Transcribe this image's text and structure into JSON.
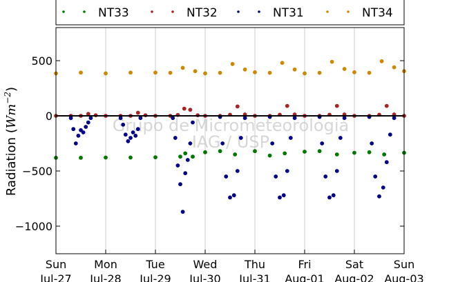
{
  "chart_data": {
    "type": "scatter",
    "ylabel": "Radiation ($Wm^{-2}$)",
    "ylabel_text": "Radiation (",
    "ylabel_unit_base": "Wm",
    "ylabel_unit_exp": "−2",
    "ylabel_close": ")",
    "ylim": [
      -1250,
      800
    ],
    "yticks": [
      {
        "value": 500,
        "label": "500"
      },
      {
        "value": 0,
        "label": "0"
      },
      {
        "value": -500,
        "label": "−500"
      },
      {
        "value": -1000,
        "label": "−1000"
      }
    ],
    "xlim": [
      0,
      7
    ],
    "xticks": [
      {
        "day": 0,
        "line1": "Sun",
        "line2": "Jul-27"
      },
      {
        "day": 1,
        "line1": "Mon",
        "line2": "Jul-28"
      },
      {
        "day": 2,
        "line1": "Tue",
        "line2": "Jul-29"
      },
      {
        "day": 3,
        "line1": "Wed",
        "line2": "Jul-30"
      },
      {
        "day": 4,
        "line1": "Thu",
        "line2": "Jul-31"
      },
      {
        "day": 5,
        "line1": "Fri",
        "line2": "Aug-01"
      },
      {
        "day": 6,
        "line1": "Sat",
        "line2": "Aug-02"
      },
      {
        "day": 7,
        "line1": "Sun",
        "line2": "Aug-03"
      }
    ],
    "grid": true,
    "legend_placement": "top",
    "zero_line": true,
    "watermark": [
      "Grupo de Micrometeorologia",
      "IAG / USP"
    ],
    "series": [
      {
        "name": "NT33",
        "color": "#007700",
        "days": [
          0,
          0.5,
          1,
          1.5,
          2,
          2.5,
          2.6,
          2.75,
          3,
          3.3,
          3.6,
          4,
          4.3,
          4.6,
          5,
          5.3,
          5.65,
          6,
          6.3,
          6.6,
          7
        ],
        "values": [
          -380,
          -380,
          -378,
          -378,
          -376,
          -370,
          -340,
          -370,
          -330,
          -320,
          -350,
          -320,
          -360,
          -340,
          -325,
          -320,
          -350,
          -335,
          -330,
          -350,
          -335
        ]
      },
      {
        "name": "NT32",
        "color": "#aa2222",
        "days": [
          0,
          0.3,
          0.5,
          0.65,
          0.8,
          1,
          1.3,
          1.5,
          1.65,
          1.8,
          2,
          2.3,
          2.45,
          2.58,
          2.7,
          2.85,
          3,
          3.3,
          3.5,
          3.65,
          3.8,
          4,
          4.3,
          4.5,
          4.65,
          4.8,
          5,
          5.3,
          5.5,
          5.65,
          5.8,
          6,
          6.3,
          6.5,
          6.65,
          6.8,
          7
        ],
        "values": [
          0,
          0,
          0,
          18,
          5,
          0,
          0,
          0,
          28,
          5,
          0,
          0,
          8,
          65,
          55,
          5,
          0,
          0,
          10,
          85,
          12,
          0,
          0,
          10,
          90,
          12,
          0,
          0,
          10,
          90,
          12,
          0,
          0,
          10,
          90,
          12,
          0
        ]
      },
      {
        "name": "NT31",
        "color": "#000088",
        "days": [
          0.3,
          0.35,
          0.4,
          0.45,
          0.5,
          0.55,
          0.6,
          0.65,
          0.7,
          1.3,
          1.35,
          1.4,
          1.45,
          1.5,
          1.55,
          1.6,
          1.65,
          1.7,
          2.35,
          2.4,
          2.45,
          2.5,
          2.55,
          2.6,
          2.65,
          2.7,
          2.75,
          3.3,
          3.35,
          3.42,
          3.5,
          3.58,
          3.65,
          3.72,
          3.8,
          4.3,
          4.35,
          4.42,
          4.5,
          4.58,
          4.65,
          4.72,
          4.8,
          5.3,
          5.35,
          5.42,
          5.5,
          5.58,
          5.65,
          5.72,
          5.8,
          6.3,
          6.35,
          6.42,
          6.5,
          6.58,
          6.65,
          6.72,
          6.8
        ],
        "values": [
          -20,
          -120,
          -250,
          -180,
          -130,
          -150,
          -100,
          -60,
          -20,
          -20,
          -80,
          -170,
          -230,
          -200,
          -150,
          -180,
          -120,
          -20,
          -20,
          -200,
          -450,
          -620,
          -870,
          -520,
          -400,
          -250,
          -60,
          -10,
          -250,
          -550,
          -740,
          -720,
          -500,
          -200,
          -20,
          -10,
          -250,
          -550,
          -740,
          -720,
          -500,
          -200,
          -20,
          -10,
          -250,
          -550,
          -740,
          -720,
          -500,
          -200,
          -20,
          -10,
          -250,
          -550,
          -730,
          -650,
          -420,
          -170,
          -20
        ]
      },
      {
        "name": "NT34",
        "color": "#cc8800",
        "days": [
          0,
          0.5,
          1,
          1.5,
          2,
          2.3,
          2.55,
          2.8,
          3,
          3.3,
          3.55,
          3.8,
          4,
          4.3,
          4.55,
          4.8,
          5,
          5.3,
          5.55,
          5.8,
          6,
          6.3,
          6.55,
          6.8,
          7
        ],
        "values": [
          385,
          392,
          385,
          392,
          392,
          390,
          435,
          405,
          385,
          390,
          470,
          420,
          395,
          390,
          480,
          420,
          385,
          390,
          490,
          425,
          395,
          390,
          495,
          440,
          405
        ]
      }
    ]
  }
}
